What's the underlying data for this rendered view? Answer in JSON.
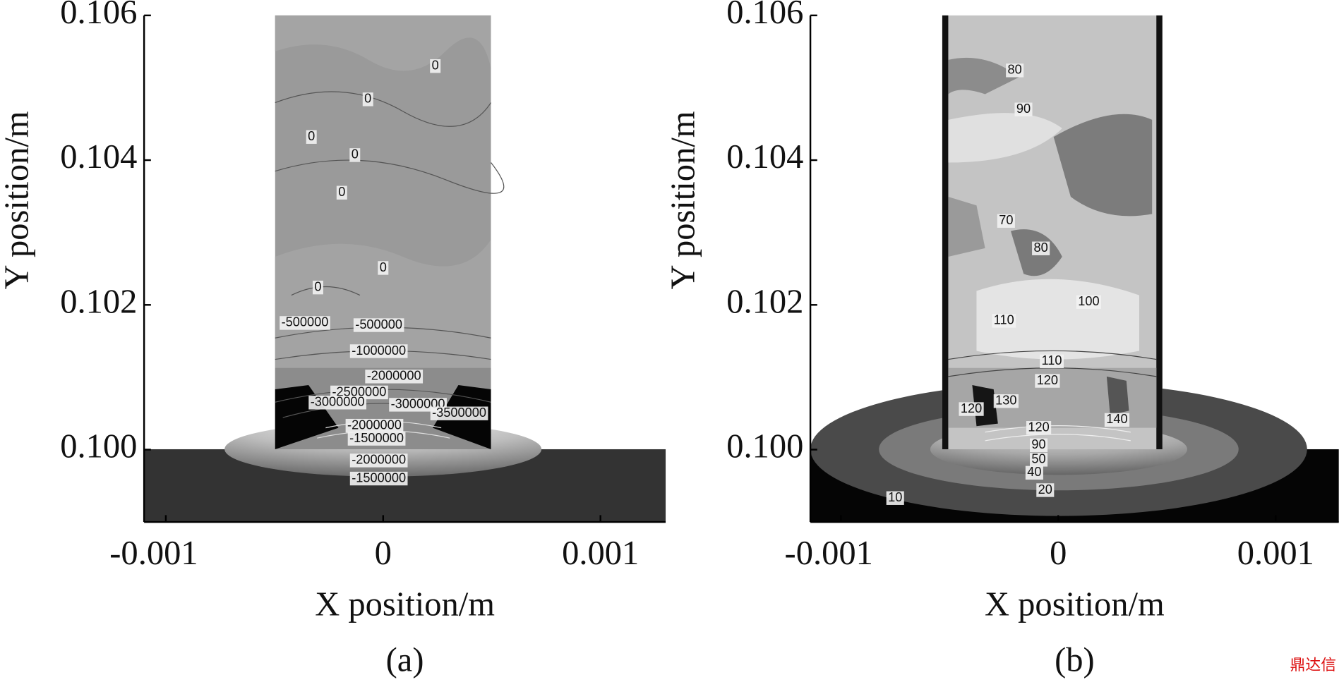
{
  "chart_data": [
    {
      "type": "contour",
      "panel_label": "(a)",
      "x_label": "X position/m",
      "y_label": "Y position/m",
      "xlim": [
        -0.0011,
        0.0013
      ],
      "ylim": [
        0.099,
        0.106
      ],
      "xticks": [
        -0.001,
        0,
        0.001
      ],
      "yticks": [
        {
          "value": 0.1,
          "label": "0.100"
        },
        0.102,
        0.104,
        0.106
      ],
      "contour_labels": [
        {
          "x": 0.00024,
          "y": 0.1053,
          "value": 0
        },
        {
          "x": -7e-05,
          "y": 0.10484,
          "value": 0
        },
        {
          "x": -0.00033,
          "y": 0.10432,
          "value": 0
        },
        {
          "x": -0.00013,
          "y": 0.10407,
          "value": 0
        },
        {
          "x": -0.00019,
          "y": 0.10355,
          "value": 0
        },
        {
          "x": 0,
          "y": 0.10251,
          "value": 0
        },
        {
          "x": -0.0003,
          "y": 0.10224,
          "value": 0
        },
        {
          "x": -0.00036,
          "y": 0.10175,
          "value": -500000
        },
        {
          "x": -2e-05,
          "y": 0.10172,
          "value": -500000
        },
        {
          "x": -2e-05,
          "y": 0.10136,
          "value": -1000000
        },
        {
          "x": 5e-05,
          "y": 0.10101,
          "value": -2000000
        },
        {
          "x": -0.00011,
          "y": 0.10079,
          "value": -2500000
        },
        {
          "x": -0.00021,
          "y": 0.10065,
          "value": -3000000
        },
        {
          "x": 0.00016,
          "y": 0.10062,
          "value": -3000000
        },
        {
          "x": 0.00035,
          "y": 0.1005,
          "value": -3500000
        },
        {
          "x": -4e-05,
          "y": 0.10033,
          "value": -2000000
        },
        {
          "x": -3e-05,
          "y": 0.10015,
          "value": -1500000
        },
        {
          "x": -2e-05,
          "y": 0.09985,
          "value": -2000000
        },
        {
          "x": -2e-05,
          "y": 0.0996,
          "value": -1500000
        }
      ]
    },
    {
      "type": "contour",
      "panel_label": "(b)",
      "x_label": "X position/m",
      "y_label": "Y position/m",
      "xlim": [
        -0.00114,
        0.00129
      ],
      "ylim": [
        0.099,
        0.106
      ],
      "xticks": [
        -0.001,
        0,
        0.001
      ],
      "yticks": [
        {
          "value": 0.1,
          "label": "0.100"
        },
        0.102,
        0.104,
        0.106
      ],
      "contour_labels": [
        {
          "x": -0.0002,
          "y": 0.10524,
          "value": 80
        },
        {
          "x": -0.00016,
          "y": 0.1047,
          "value": 90
        },
        {
          "x": -0.00024,
          "y": 0.10316,
          "value": 70
        },
        {
          "x": -8e-05,
          "y": 0.10278,
          "value": 80
        },
        {
          "x": 0.00014,
          "y": 0.10204,
          "value": 100
        },
        {
          "x": -0.00025,
          "y": 0.10178,
          "value": 110
        },
        {
          "x": -3e-05,
          "y": 0.10122,
          "value": 110
        },
        {
          "x": -5e-05,
          "y": 0.10095,
          "value": 120
        },
        {
          "x": -0.0004,
          "y": 0.10056,
          "value": 120
        },
        {
          "x": -0.00024,
          "y": 0.10067,
          "value": 130
        },
        {
          "x": 0.00027,
          "y": 0.10041,
          "value": 140
        },
        {
          "x": -9e-05,
          "y": 0.1003,
          "value": 120
        },
        {
          "x": -9e-05,
          "y": 0.10006,
          "value": 90
        },
        {
          "x": -9e-05,
          "y": 0.09986,
          "value": 50
        },
        {
          "x": -0.00011,
          "y": 0.09968,
          "value": 40
        },
        {
          "x": -6e-05,
          "y": 0.09944,
          "value": 20
        },
        {
          "x": -0.00075,
          "y": 0.09933,
          "value": 10
        }
      ]
    }
  ],
  "watermark": "鼎达信"
}
